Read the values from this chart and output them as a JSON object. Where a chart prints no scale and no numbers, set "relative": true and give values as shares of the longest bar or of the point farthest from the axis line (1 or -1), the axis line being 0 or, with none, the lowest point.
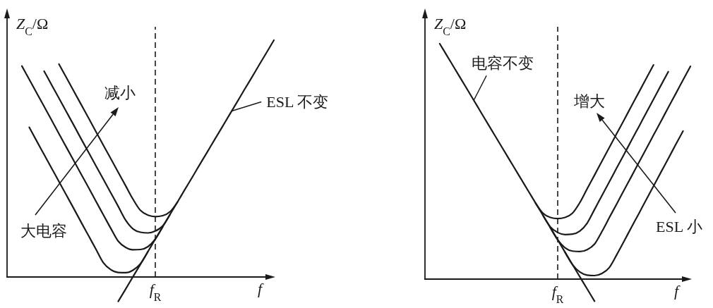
{
  "chart_data": [
    {
      "type": "line",
      "relative": true,
      "ylabel": "Z$_{C}$/Ω",
      "xlabel": "f",
      "categories": [
        null,
        null,
        null,
        null,
        null,
        null,
        null,
        null,
        null,
        null,
        null,
        null,
        null,
        null,
        null,
        null,
        null,
        null,
        null,
        null,
        null,
        null,
        null,
        null,
        null,
        null,
        null,
        null,
        null,
        null,
        null,
        null,
        null,
        null,
        null,
        null,
        null
      ],
      "series": [
        {
          "name": "ESL 不变",
          "color": "#1a1a1a",
          "values": [
            null,
            null,
            null,
            null,
            null,
            null,
            null,
            null,
            null,
            null,
            null,
            null,
            null,
            null,
            null,
            -0.103,
            -0.051,
            0.002,
            0.054,
            0.107,
            0.16,
            0.212,
            0.265,
            0.317,
            0.37,
            0.422,
            0.475,
            0.527,
            0.58,
            0.632,
            0.685,
            0.737,
            0.79,
            0.842,
            0.895,
            0.947,
            1
          ]
        },
        {
          "color": "#1a1a1a",
          "values": [
            null,
            null,
            null,
            0.632,
            0.574,
            0.517,
            0.46,
            0.403,
            0.346,
            0.289,
            0.231,
            0.174,
            0.117,
            0.06,
            0.031,
            0.019,
            0.018,
            0.029,
            0.056,
            0.107,
            null,
            null,
            null,
            null,
            null,
            null,
            null,
            null,
            null,
            null,
            null,
            null,
            null,
            null,
            null,
            null,
            null
          ]
        },
        {
          "color": "#1a1a1a",
          "values": [
            null,
            null,
            0.891,
            0.834,
            0.777,
            0.72,
            0.663,
            0.605,
            0.548,
            0.491,
            0.434,
            0.377,
            0.319,
            0.262,
            0.205,
            0.151,
            0.125,
            0.115,
            0.116,
            0.128,
            0.16,
            0.212,
            null,
            null,
            null,
            null,
            null,
            null,
            null,
            null,
            null,
            null,
            null,
            null,
            null,
            null,
            null
          ]
        },
        {
          "color": "#1a1a1a",
          "values": [
            null,
            null,
            null,
            null,
            null,
            0.869,
            0.812,
            0.755,
            0.698,
            0.641,
            0.583,
            0.526,
            0.469,
            0.412,
            0.355,
            0.298,
            0.24,
            0.203,
            0.189,
            0.186,
            0.194,
            0.216,
            0.265,
            null,
            null,
            null,
            null,
            null,
            null,
            null,
            null,
            null,
            null,
            null,
            null,
            null,
            null
          ]
        },
        {
          "color": "#1a1a1a",
          "values": [
            null,
            null,
            null,
            null,
            null,
            null,
            null,
            0.899,
            0.842,
            0.785,
            0.728,
            0.671,
            0.613,
            0.556,
            0.499,
            0.442,
            0.385,
            0.328,
            0.281,
            0.261,
            0.255,
            0.259,
            0.276,
            0.317,
            null,
            null,
            null,
            null,
            null,
            null,
            null,
            null,
            null,
            null,
            null,
            null,
            null
          ]
        }
      ],
      "annotations": [
        "减小",
        "大电容",
        "f$_{R}$"
      ]
    },
    {
      "type": "line",
      "relative": true,
      "ylabel": "Z$_{C}$/Ω",
      "xlabel": "f",
      "categories": [
        null,
        null,
        null,
        null,
        null,
        null,
        null,
        null,
        null,
        null,
        null,
        null,
        null,
        null,
        null,
        null,
        null,
        null,
        null,
        null,
        null,
        null,
        null,
        null,
        null,
        null,
        null,
        null,
        null,
        null,
        null,
        null,
        null,
        null,
        null,
        null,
        null
      ],
      "series": [
        {
          "name": "电容不变",
          "color": "#1a1a1a",
          "values": [
            null,
            null,
            1,
            0.948,
            0.896,
            0.844,
            0.792,
            0.74,
            0.687,
            0.635,
            0.583,
            0.531,
            0.479,
            0.427,
            0.375,
            0.323,
            0.271,
            0.219,
            0.167,
            0.114,
            0.062,
            0.01,
            -0.042,
            -0.094,
            null,
            null,
            null,
            null,
            null,
            null,
            null,
            null,
            null,
            null,
            null,
            null,
            null
          ]
        },
        {
          "color": "#1a1a1a",
          "values": [
            null,
            null,
            null,
            null,
            null,
            null,
            null,
            null,
            null,
            null,
            null,
            null,
            null,
            null,
            null,
            0.323,
            0.28,
            0.262,
            0.257,
            0.262,
            0.28,
            0.325,
            0.384,
            0.442,
            0.501,
            0.559,
            0.618,
            0.676,
            0.735,
            0.793,
            0.852,
            0.91,
            null,
            null,
            null,
            null,
            null
          ]
        },
        {
          "color": "#1a1a1a",
          "values": [
            null,
            null,
            null,
            null,
            null,
            null,
            null,
            null,
            null,
            null,
            null,
            null,
            null,
            null,
            null,
            null,
            0.271,
            0.222,
            0.198,
            0.189,
            0.191,
            0.204,
            0.238,
            0.296,
            0.355,
            0.413,
            0.472,
            0.53,
            0.589,
            0.647,
            0.706,
            0.764,
            0.823,
            0.881,
            null,
            null,
            null
          ]
        },
        {
          "color": "#1a1a1a",
          "values": [
            null,
            null,
            null,
            null,
            null,
            null,
            null,
            null,
            null,
            null,
            null,
            null,
            null,
            null,
            null,
            null,
            null,
            0.219,
            0.167,
            0.133,
            0.119,
            0.117,
            0.125,
            0.149,
            0.202,
            0.261,
            0.319,
            0.378,
            0.436,
            0.495,
            0.553,
            0.612,
            0.67,
            0.729,
            0.787,
            0.846,
            0.904
          ]
        },
        {
          "color": "#1a1a1a",
          "values": [
            null,
            null,
            null,
            null,
            null,
            null,
            null,
            null,
            null,
            null,
            null,
            null,
            null,
            null,
            null,
            null,
            null,
            null,
            null,
            0.114,
            0.062,
            0.03,
            0.017,
            0.015,
            0.024,
            0.049,
            0.103,
            0.161,
            0.22,
            0.278,
            0.337,
            0.395,
            0.454,
            0.512,
            0.571,
            0.629,
            null
          ]
        }
      ],
      "annotations": [
        "增大",
        "ESL 小",
        "f$_{R}$"
      ]
    }
  ]
}
